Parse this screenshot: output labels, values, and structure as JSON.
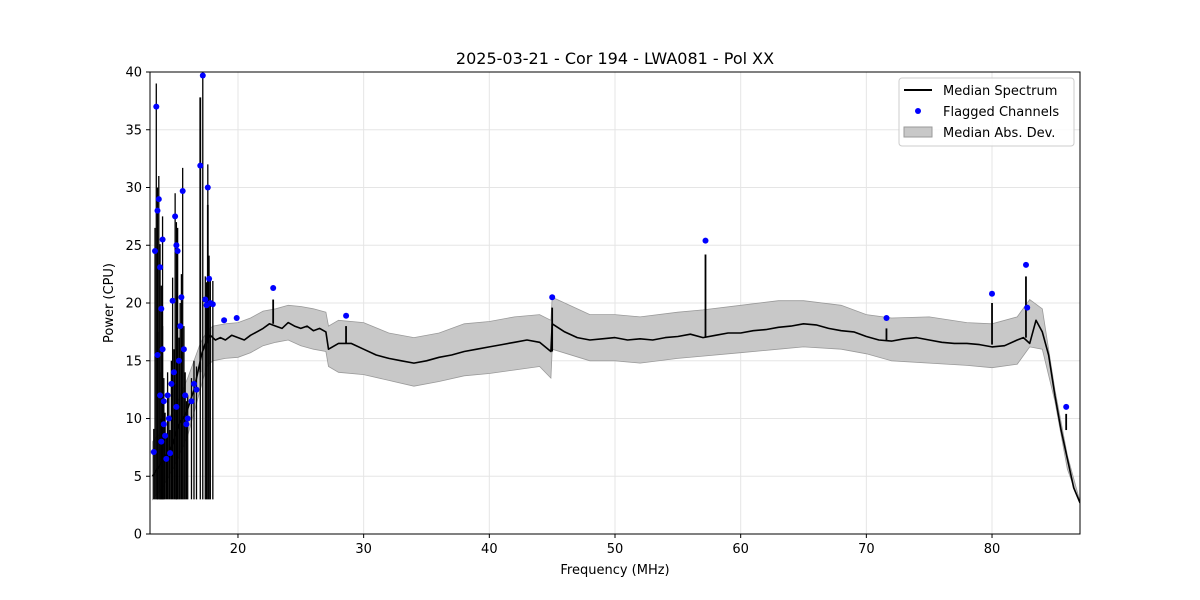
{
  "chart_data": {
    "type": "line",
    "title": "2025-03-21 - Cor 194 - LWA081 - Pol XX",
    "xlabel": "Frequency (MHz)",
    "ylabel": "Power (CPU)",
    "xlim": [
      13,
      87
    ],
    "ylim": [
      0,
      40
    ],
    "x_ticks": [
      20,
      30,
      40,
      50,
      60,
      70,
      80
    ],
    "y_ticks": [
      0,
      5,
      10,
      15,
      20,
      25,
      30,
      35,
      40
    ],
    "grid": true,
    "legend_position": "top-right",
    "legend": [
      "Median Spectrum",
      "Flagged Channels",
      "Median Abs. Dev."
    ],
    "colors": {
      "median": "#000000",
      "flagged": "#0000ff",
      "mad_fill": "#c8c8c8",
      "mad_edge": "#9a9a9a",
      "grid": "#e5e5e5"
    },
    "series": [
      {
        "name": "Median Spectrum",
        "x": [
          13.2,
          13.5,
          13.8,
          14.1,
          14.4,
          14.7,
          15.0,
          15.3,
          15.6,
          15.9,
          16.2,
          16.5,
          16.8,
          17.1,
          17.4,
          17.8,
          18.2,
          18.6,
          19.0,
          19.5,
          20.0,
          20.5,
          21.0,
          21.5,
          22.0,
          22.5,
          23.0,
          23.5,
          24.0,
          24.5,
          25.0,
          25.5,
          26.0,
          26.5,
          27.0,
          27.2,
          28.0,
          29.0,
          30.0,
          31.0,
          32.0,
          33.0,
          34.0,
          35.0,
          36.0,
          37.0,
          38.0,
          39.0,
          40.0,
          41.0,
          42.0,
          43.0,
          44.0,
          44.9,
          45.0,
          46.0,
          47.0,
          48.0,
          49.0,
          50.0,
          51.0,
          52.0,
          53.0,
          54.0,
          55.0,
          56.0,
          57.0,
          58.0,
          59.0,
          60.0,
          61.0,
          62.0,
          63.0,
          64.0,
          65.0,
          66.0,
          67.0,
          68.0,
          69.0,
          70.0,
          71.0,
          72.0,
          73.0,
          74.0,
          75.0,
          76.0,
          77.0,
          78.0,
          79.0,
          80.0,
          81.0,
          82.0,
          82.5,
          83.0,
          83.5,
          84.0,
          84.5,
          85.0,
          85.5,
          86.0,
          86.5,
          87.0
        ],
        "values": [
          5.0,
          5.5,
          6.0,
          6.5,
          7.0,
          7.5,
          8.5,
          9.5,
          10.0,
          10.5,
          11.5,
          12.5,
          14.0,
          15.5,
          16.5,
          17.2,
          16.8,
          17.0,
          16.8,
          17.2,
          17.0,
          16.8,
          17.2,
          17.5,
          17.8,
          18.2,
          18.0,
          17.8,
          18.3,
          18.0,
          17.8,
          18.0,
          17.6,
          17.8,
          17.5,
          16.0,
          16.5,
          16.5,
          16.0,
          15.5,
          15.2,
          15.0,
          14.8,
          15.0,
          15.3,
          15.5,
          15.8,
          16.0,
          16.2,
          16.4,
          16.6,
          16.8,
          16.6,
          15.8,
          18.2,
          17.5,
          17.0,
          16.8,
          16.9,
          17.0,
          16.8,
          16.9,
          16.8,
          17.0,
          17.1,
          17.3,
          17.0,
          17.2,
          17.4,
          17.4,
          17.6,
          17.7,
          17.9,
          18.0,
          18.2,
          18.1,
          17.8,
          17.6,
          17.5,
          17.1,
          16.8,
          16.7,
          16.9,
          17.0,
          16.8,
          16.6,
          16.5,
          16.5,
          16.4,
          16.2,
          16.3,
          16.8,
          17.0,
          16.5,
          18.5,
          17.5,
          15.5,
          12.0,
          9.0,
          6.5,
          4.0,
          2.7
        ]
      },
      {
        "name": "Median Abs. Dev.",
        "x": [
          13.2,
          14.0,
          15.0,
          16.0,
          17.0,
          17.5,
          18.0,
          19.0,
          20.0,
          21.0,
          22.0,
          23.0,
          24.0,
          25.0,
          26.0,
          27.0,
          27.2,
          28.0,
          30.0,
          32.0,
          34.0,
          36.0,
          38.0,
          40.0,
          42.0,
          44.0,
          44.9,
          45.0,
          48.0,
          50.0,
          52.0,
          55.0,
          57.0,
          60.0,
          63.0,
          65.0,
          68.0,
          70.0,
          72.0,
          75.0,
          78.0,
          80.0,
          82.0,
          83.0,
          84.0,
          85.0,
          86.0,
          87.0
        ],
        "upper": [
          8.0,
          9.0,
          11.0,
          13.5,
          16.5,
          17.5,
          18.0,
          18.2,
          18.3,
          18.7,
          19.3,
          19.5,
          19.8,
          19.7,
          19.5,
          19.2,
          18.0,
          18.5,
          18.3,
          17.4,
          17.0,
          17.4,
          18.2,
          18.4,
          18.8,
          19.0,
          18.5,
          20.5,
          19.0,
          19.0,
          18.8,
          19.2,
          19.4,
          19.8,
          20.2,
          20.2,
          19.8,
          19.0,
          18.7,
          18.8,
          18.3,
          18.2,
          18.8,
          20.3,
          19.5,
          12.5,
          6.8,
          2.8
        ],
        "lower": [
          3.0,
          4.0,
          6.0,
          8.5,
          12.5,
          14.5,
          15.0,
          15.2,
          15.3,
          15.7,
          16.3,
          16.6,
          16.8,
          16.3,
          16.0,
          15.8,
          14.5,
          14.0,
          13.8,
          13.3,
          12.8,
          13.2,
          13.7,
          13.9,
          14.2,
          14.5,
          13.5,
          16.0,
          15.0,
          15.0,
          14.8,
          15.2,
          15.4,
          15.7,
          16.0,
          16.2,
          16.0,
          15.6,
          15.0,
          14.8,
          14.6,
          14.4,
          14.7,
          16.2,
          16.0,
          11.5,
          5.6,
          2.6
        ]
      },
      {
        "name": "Flagged Channels",
        "x": [
          13.3,
          13.4,
          13.5,
          13.6,
          13.6,
          13.7,
          13.8,
          13.8,
          13.9,
          13.9,
          14.0,
          14.0,
          14.1,
          14.1,
          14.2,
          14.3,
          14.4,
          14.5,
          14.6,
          14.7,
          14.8,
          14.9,
          15.0,
          15.1,
          15.1,
          15.2,
          15.3,
          15.4,
          15.5,
          15.6,
          15.7,
          15.8,
          15.9,
          16.0,
          16.3,
          16.5,
          16.7,
          17.0,
          17.2,
          17.4,
          17.5,
          17.6,
          17.7,
          17.8,
          18.0,
          18.9,
          19.9,
          22.8,
          28.6,
          45.0,
          57.2,
          71.6,
          80.0,
          82.7,
          82.8,
          85.9
        ],
        "values": [
          7.1,
          24.5,
          37.0,
          28.0,
          15.5,
          29.0,
          23.1,
          12.0,
          19.5,
          8.0,
          25.5,
          16.0,
          11.5,
          9.5,
          8.5,
          6.5,
          12.0,
          10.0,
          7.0,
          13.0,
          20.2,
          14.0,
          27.5,
          11.0,
          25.0,
          24.5,
          15.0,
          18.0,
          20.5,
          29.7,
          16.0,
          12.0,
          9.5,
          10.0,
          11.5,
          13.0,
          12.5,
          31.9,
          39.7,
          20.3,
          19.8,
          30.0,
          22.1,
          20.0,
          19.9,
          18.5,
          18.7,
          21.3,
          18.9,
          20.5,
          25.4,
          18.7,
          20.8,
          23.3,
          19.6,
          11.0
        ]
      }
    ],
    "spikes": [
      {
        "x": 17.0,
        "y": 37.8
      },
      {
        "x": 17.6,
        "y": 28.5
      },
      {
        "x": 22.8,
        "y": 20.3
      },
      {
        "x": 28.6,
        "y": 18.0
      },
      {
        "x": 45.0,
        "y": 19.6
      },
      {
        "x": 57.2,
        "y": 24.2
      },
      {
        "x": 71.6,
        "y": 17.8
      },
      {
        "x": 80.0,
        "y": 20.0
      },
      {
        "x": 82.7,
        "y": 22.3
      },
      {
        "x": 85.9,
        "y": 10.4
      }
    ]
  }
}
